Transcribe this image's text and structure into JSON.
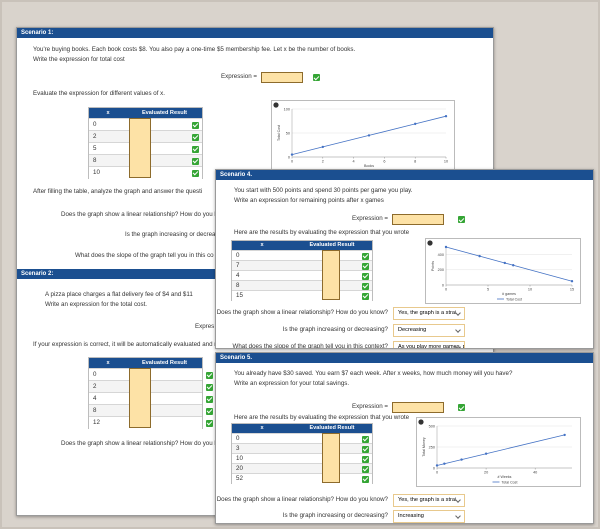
{
  "scenarios": [
    {
      "title": "Scenario 1:",
      "prompt": [
        "You're buying books. Each book costs $8. You also pay a one-time $5 membership fee. Let x be the number of books.",
        "Write the expression for total cost"
      ],
      "expression_label": "Expression =",
      "instruction": "Evaluate the expression for different values of x.",
      "table": {
        "header": [
          "x",
          "Evaluated Result"
        ],
        "x": [
          0,
          2,
          5,
          8,
          10
        ]
      },
      "chart": {
        "type": "line",
        "x": [
          0,
          2,
          5,
          8,
          10
        ],
        "values": [
          5,
          21,
          45,
          69,
          85
        ],
        "xlim": [
          0,
          10
        ],
        "ylim": [
          0,
          100
        ],
        "xticks": [
          0,
          2,
          4,
          6,
          8,
          10
        ],
        "yticks": [
          0,
          50,
          100
        ],
        "xlabel": "Books",
        "ylabel": "Total Cost",
        "color": "#4472c4"
      },
      "followup": "After filling the table, analyze the graph and answer the questi",
      "questions": [
        {
          "text": "Does the graph show a linear relationship? How do you k"
        },
        {
          "text": "Is the graph increasing or decrea"
        },
        {
          "text": "What does the slope of the graph tell you in this co"
        }
      ]
    },
    {
      "title": "Scenario 2:",
      "prompt": [
        "A pizza place charges a flat delivery fee of $4 and $11",
        "Write an expression for the total cost."
      ],
      "expression_label": "Expres",
      "instruction": "If your expression is correct, it will be automatically evaluated and result",
      "table": {
        "header": [
          "x",
          "Evaluated Result"
        ],
        "x": [
          0,
          2,
          4,
          8,
          12
        ]
      },
      "questions": [
        {
          "text": "Does the graph show a linear relationship? How do you k"
        }
      ]
    },
    {
      "title": "Scenario 4.",
      "prompt": [
        "You start with 500 points and spend 30 points per game you play.",
        "Write an expression for remaining points after x games"
      ],
      "expression_label": "Expression =",
      "instruction": "Here are the results by evaluating the expression that you wrote",
      "table": {
        "header": [
          "x",
          "Evaluated Result"
        ],
        "x": [
          0,
          7,
          4,
          8,
          15
        ]
      },
      "chart": {
        "type": "line",
        "x": [
          0,
          4,
          7,
          8,
          15
        ],
        "values": [
          500,
          380,
          290,
          260,
          50
        ],
        "xlim": [
          0,
          15
        ],
        "ylim": [
          0,
          500
        ],
        "xticks": [
          0,
          5,
          10,
          15
        ],
        "yticks": [
          0,
          200,
          400
        ],
        "xlabel": "# games",
        "ylabel": "Points",
        "legend": "Total Cost",
        "color": "#4472c4"
      },
      "questions": [
        {
          "text": "Does the graph show a linear relationship? How do you know?",
          "answer": "Yes, the graph is a strai"
        },
        {
          "text": "Is the graph increasing or decreasing?",
          "answer": "Decreasing"
        },
        {
          "text": "What does the slope of the graph tell you in this context?",
          "answer": "As you play more games, points decreas"
        }
      ]
    },
    {
      "title": "Scenario 5.",
      "prompt": [
        "You already have $30 saved. You earn $7 each week. After x weeks, how much money will you have?",
        "Write an expression for your total savings."
      ],
      "expression_label": "Expression =",
      "instruction": "Here are the results by evaluating the expression that you wrote",
      "table": {
        "header": [
          "x",
          "Evaluated Result"
        ],
        "x": [
          0,
          3,
          10,
          20,
          52
        ]
      },
      "chart": {
        "type": "line",
        "x": [
          0,
          3,
          10,
          20,
          52
        ],
        "values": [
          30,
          51,
          100,
          170,
          394
        ],
        "xlim": [
          0,
          55
        ],
        "ylim": [
          0,
          500
        ],
        "xticks": [
          0,
          20,
          40
        ],
        "yticks": [
          0,
          250,
          500
        ],
        "xlabel": "# Weeks",
        "ylabel": "Total Money",
        "legend": "Total Cost",
        "color": "#4472c4"
      },
      "questions": [
        {
          "text": "Does the graph show a linear relationship? How do you know?",
          "answer": "Yes, the graph is a strai"
        },
        {
          "text": "Is the graph increasing or decreasing?",
          "answer": "Increasing"
        }
      ]
    }
  ]
}
